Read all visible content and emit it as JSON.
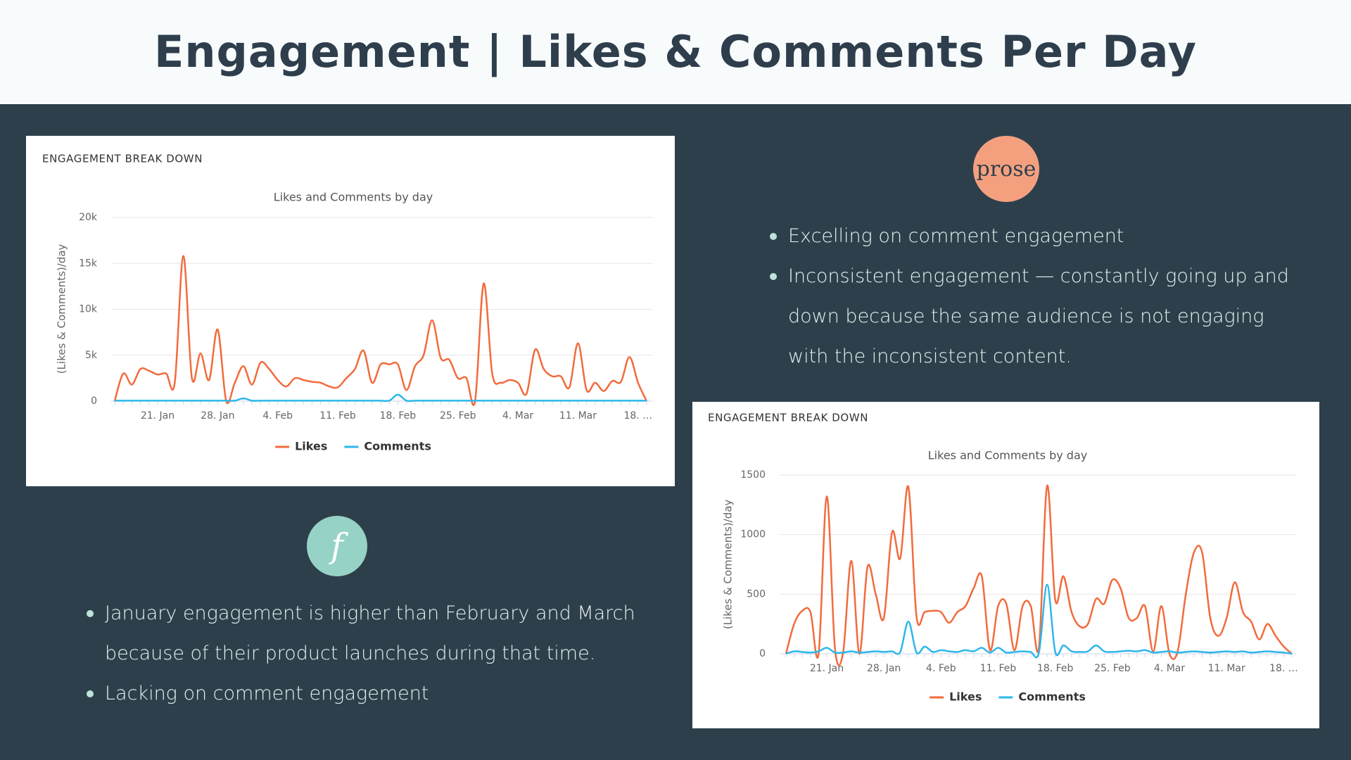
{
  "header": {
    "title": "Engagement | Likes & Comments Per Day"
  },
  "chart_data": [
    {
      "type": "line",
      "header": "ENGAGEMENT BREAK DOWN",
      "title": "Likes and Comments by day",
      "y_label": "(Likes & Comments)/day",
      "categories": [
        null,
        null,
        null,
        null,
        null,
        "21. Jan",
        null,
        null,
        null,
        null,
        null,
        null,
        "28. Jan",
        null,
        null,
        null,
        null,
        null,
        null,
        "4. Feb",
        null,
        null,
        null,
        null,
        null,
        null,
        "11. Feb",
        null,
        null,
        null,
        null,
        null,
        null,
        "18. Feb",
        null,
        null,
        null,
        null,
        null,
        null,
        "25. Feb",
        null,
        null,
        null,
        null,
        null,
        null,
        "4. Mar",
        null,
        null,
        null,
        null,
        null,
        null,
        "11. Mar",
        null,
        null,
        null,
        null,
        null,
        null,
        "18. …",
        null
      ],
      "series": [
        {
          "name": "Likes",
          "color": "#f26b3d",
          "values": [
            0,
            3000,
            1800,
            3500,
            3300,
            2900,
            3000,
            2000,
            15800,
            2500,
            5200,
            2300,
            7800,
            0,
            2000,
            3800,
            1800,
            4200,
            3500,
            2300,
            1600,
            2500,
            2300,
            2100,
            2000,
            1600,
            1500,
            2500,
            3500,
            5500,
            2000,
            4000,
            4000,
            4000,
            1200,
            3800,
            5000,
            8800,
            4700,
            4500,
            2500,
            2500,
            0,
            12800,
            3000,
            2000,
            2300,
            2000,
            800,
            5600,
            3500,
            2700,
            2700,
            1500,
            6300,
            1200,
            2000,
            1100,
            2200,
            2100,
            4800,
            2000,
            0
          ]
        },
        {
          "name": "Comments",
          "color": "#2db7ea",
          "values": [
            50,
            50,
            50,
            50,
            50,
            50,
            50,
            50,
            50,
            50,
            50,
            50,
            50,
            50,
            50,
            300,
            50,
            50,
            50,
            50,
            50,
            50,
            50,
            50,
            50,
            50,
            50,
            50,
            50,
            50,
            50,
            50,
            50,
            700,
            50,
            50,
            50,
            50,
            50,
            50,
            50,
            50,
            50,
            50,
            50,
            50,
            50,
            50,
            50,
            50,
            50,
            50,
            50,
            50,
            50,
            50,
            50,
            50,
            50,
            50,
            50,
            50,
            50
          ]
        }
      ],
      "ylim": [
        0,
        20000
      ],
      "yticks": [
        0,
        {
          "value": 5000,
          "label": "5k"
        },
        {
          "value": 10000,
          "label": "10k"
        },
        {
          "value": 15000,
          "label": "15k"
        },
        {
          "value": 20000,
          "label": "20k"
        }
      ],
      "grid": true,
      "legend": "bottom"
    },
    {
      "type": "line",
      "header": "ENGAGEMENT BREAK DOWN",
      "title": "Likes and Comments by day",
      "y_label": "(Likes & Comments)/day",
      "categories": [
        null,
        null,
        null,
        null,
        null,
        "21. Jan",
        null,
        null,
        null,
        null,
        null,
        null,
        "28. Jan",
        null,
        null,
        null,
        null,
        null,
        null,
        "4. Feb",
        null,
        null,
        null,
        null,
        null,
        null,
        "11. Feb",
        null,
        null,
        null,
        null,
        null,
        null,
        "18. Feb",
        null,
        null,
        null,
        null,
        null,
        null,
        "25. Feb",
        null,
        null,
        null,
        null,
        null,
        null,
        "4. Mar",
        null,
        null,
        null,
        null,
        null,
        null,
        "11. Mar",
        null,
        null,
        null,
        null,
        null,
        null,
        "18. …",
        null
      ],
      "series": [
        {
          "name": "Likes",
          "color": "#f26b3d",
          "values": [
            0,
            250,
            360,
            350,
            0,
            1320,
            50,
            10,
            780,
            0,
            730,
            500,
            300,
            1020,
            800,
            1400,
            310,
            350,
            360,
            350,
            260,
            350,
            400,
            550,
            650,
            30,
            400,
            420,
            30,
            400,
            400,
            50,
            1410,
            450,
            650,
            350,
            230,
            250,
            460,
            420,
            620,
            550,
            300,
            300,
            400,
            20,
            400,
            0,
            20,
            500,
            850,
            850,
            300,
            150,
            300,
            600,
            350,
            270,
            120,
            250,
            150,
            60,
            0
          ]
        },
        {
          "name": "Comments",
          "color": "#2db7ea",
          "values": [
            0,
            20,
            15,
            10,
            20,
            50,
            10,
            10,
            20,
            10,
            15,
            20,
            15,
            20,
            15,
            270,
            10,
            60,
            15,
            30,
            20,
            15,
            30,
            20,
            50,
            10,
            50,
            10,
            15,
            20,
            15,
            10,
            580,
            15,
            70,
            20,
            15,
            20,
            70,
            20,
            15,
            20,
            25,
            20,
            30,
            10,
            15,
            20,
            10,
            15,
            20,
            15,
            10,
            15,
            20,
            15,
            20,
            10,
            15,
            20,
            15,
            10,
            0
          ]
        }
      ],
      "ylim": [
        0,
        1500
      ],
      "yticks": [
        0,
        500,
        1000,
        1500
      ],
      "grid": true,
      "legend": "bottom"
    }
  ],
  "left_section": {
    "logo": "f",
    "bullets": [
      "January engagement is higher than February and March because of their product launches during that time.",
      "Lacking on comment engagement"
    ]
  },
  "right_section": {
    "logo": "prose",
    "bullets": [
      "Excelling on comment engagement",
      "Inconsistent engagement — constantly going up and down because the same audience is not engaging with the inconsistent content."
    ]
  }
}
